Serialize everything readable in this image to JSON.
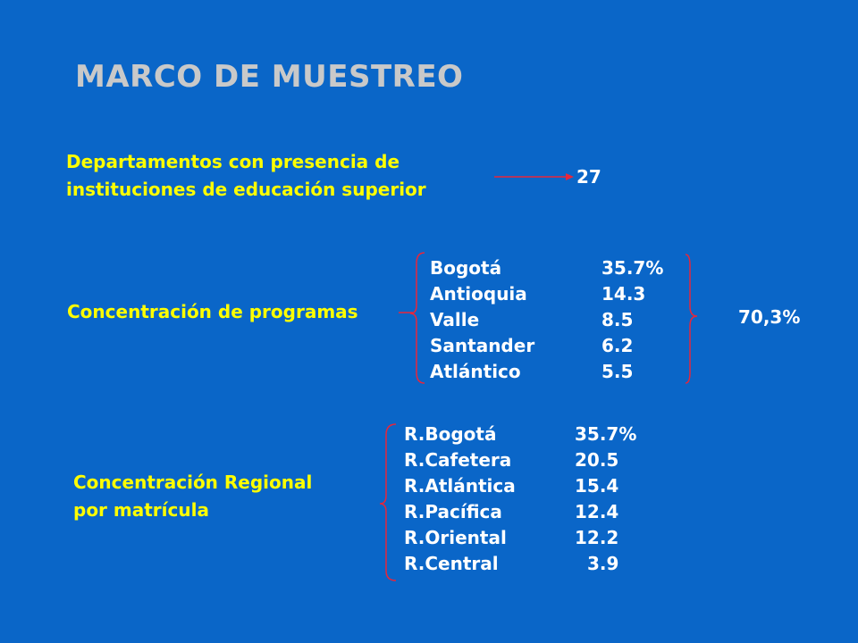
{
  "title": "MARCO DE MUESTREO",
  "section1": {
    "label_line1": "Departamentos con presencia de",
    "label_line2": "instituciones de educación superior",
    "value": "27"
  },
  "section2": {
    "label": "Concentración de programas",
    "rows": [
      {
        "name": "Bogotá",
        "value": "35.7%"
      },
      {
        "name": "Antioquia",
        "value": "14.3"
      },
      {
        "name": "Valle",
        "value": "8.5"
      },
      {
        "name": "Santander",
        "value": "6.2"
      },
      {
        "name": "Atlántico",
        "value": "5.5"
      }
    ],
    "total": "70,3%"
  },
  "section3": {
    "label_line1": "Concentración Regional",
    "label_line2": "por matrícula",
    "rows": [
      {
        "name": "R.Bogotá",
        "value": "35.7%"
      },
      {
        "name": "R.Cafetera",
        "value": "20.5"
      },
      {
        "name": "R.Atlántica",
        "value": "15.4"
      },
      {
        "name": "R.Pacífica",
        "value": "12.4"
      },
      {
        "name": "R.Oriental",
        "value": "12.2"
      },
      {
        "name": "R.Central",
        "value": "3.9"
      }
    ]
  },
  "colors": {
    "background": "#0a66c8",
    "label": "#ffff00",
    "text": "#ffffff",
    "title": "#c9c9c9",
    "accent": "#e8263a"
  }
}
